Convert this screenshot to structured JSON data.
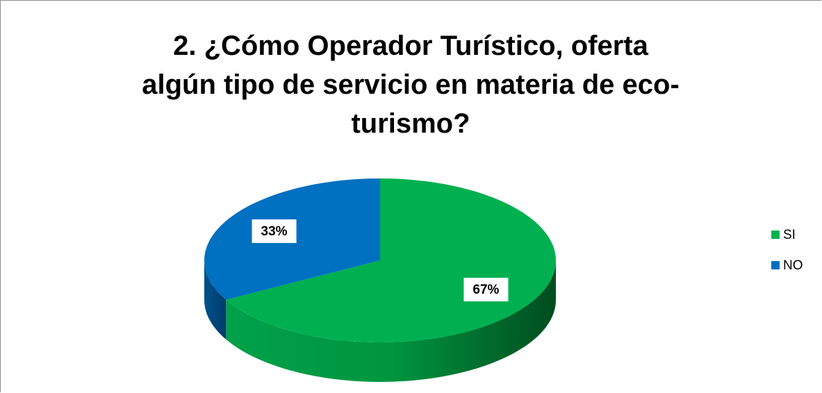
{
  "chart_data": {
    "type": "pie3d",
    "title": "2. ¿Cómo Operador Turístico, oferta algún tipo de servicio en materia de eco-turismo?",
    "categories": [
      "SI",
      "NO"
    ],
    "values": [
      67,
      33
    ],
    "value_labels": [
      "67%",
      "33%"
    ],
    "colors": [
      "#00b050",
      "#0070c0"
    ],
    "legend": "right"
  }
}
